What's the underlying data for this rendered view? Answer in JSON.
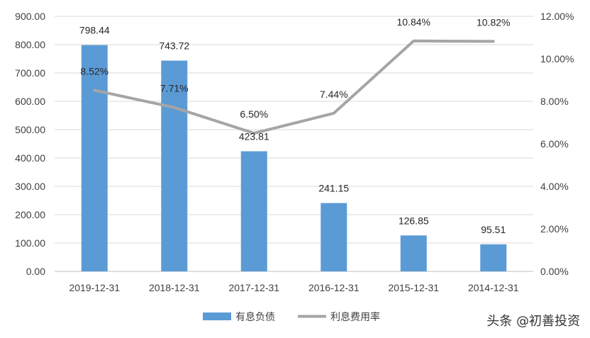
{
  "chart_data": {
    "type": "bar+line",
    "categories": [
      "2019-12-31",
      "2018-12-31",
      "2017-12-31",
      "2016-12-31",
      "2015-12-31",
      "2014-12-31"
    ],
    "series": [
      {
        "name": "有息负债",
        "type": "bar",
        "axis": "left",
        "color": "#5b9bd5",
        "values": [
          798.44,
          743.72,
          423.81,
          241.15,
          126.85,
          95.51
        ],
        "labels": [
          "798.44",
          "743.72",
          "423.81",
          "241.15",
          "126.85",
          "95.51"
        ]
      },
      {
        "name": "利息费用率",
        "type": "line",
        "axis": "right",
        "color": "#a5a5a5",
        "values": [
          8.52,
          7.71,
          6.5,
          7.44,
          10.84,
          10.82
        ],
        "labels": [
          "8.52%",
          "7.71%",
          "6.50%",
          "7.44%",
          "10.84%",
          "10.82%"
        ]
      }
    ],
    "y_left": {
      "lim": [
        0,
        900
      ],
      "ticks": [
        "0.00",
        "100.00",
        "200.00",
        "300.00",
        "400.00",
        "500.00",
        "600.00",
        "700.00",
        "800.00",
        "900.00"
      ]
    },
    "y_right": {
      "lim": [
        0,
        12
      ],
      "ticks": [
        "0.00%",
        "2.00%",
        "4.00%",
        "6.00%",
        "8.00%",
        "10.00%",
        "12.00%"
      ]
    },
    "grid": true,
    "legend": "bottom-center"
  },
  "watermark": "头条 @初善投资"
}
